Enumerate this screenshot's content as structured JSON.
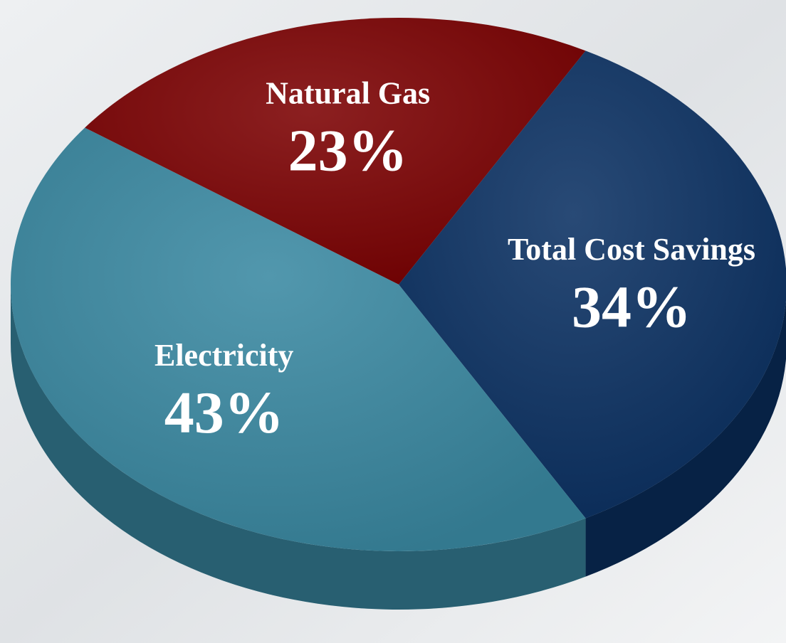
{
  "chart_data": {
    "type": "pie",
    "categories": [
      "Natural Gas",
      "Total Cost Savings",
      "Electricity"
    ],
    "values": [
      23,
      34,
      43
    ],
    "value_labels": [
      "23%",
      "34%",
      "43%"
    ],
    "colors": [
      "#7c0102",
      "#0b3163",
      "#3a89a2"
    ]
  }
}
